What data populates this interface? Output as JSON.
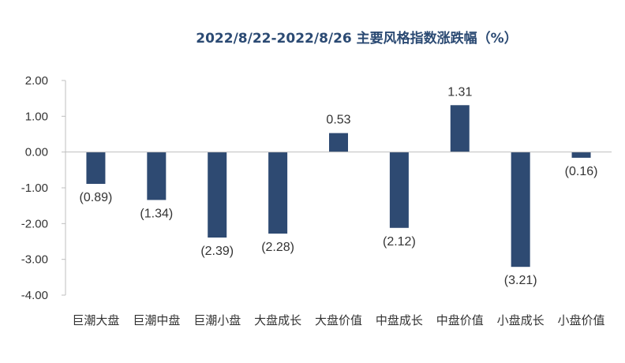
{
  "chart_data": {
    "type": "bar",
    "title": "2022/8/22-2022/8/26  主要风格指数涨跌幅（%）",
    "categories": [
      "巨潮大盘",
      "巨潮中盘",
      "巨潮小盘",
      "大盘成长",
      "大盘价值",
      "中盘成长",
      "中盘价值",
      "小盘成长",
      "小盘价值"
    ],
    "values": [
      -0.89,
      -1.34,
      -2.39,
      -2.28,
      0.53,
      -2.12,
      1.31,
      -3.21,
      -0.16
    ],
    "data_labels": [
      "(0.89)",
      "(1.34)",
      "(2.39)",
      "(2.28)",
      "0.53",
      "(2.12)",
      "1.31",
      "(3.21)",
      "(0.16)"
    ],
    "yticks": [
      "2.00",
      "1.00",
      "0.00",
      "-1.00",
      "-2.00",
      "-3.00",
      "-4.00"
    ],
    "ytick_values": [
      2,
      1,
      0,
      -1,
      -2,
      -3,
      -4
    ],
    "ylim": [
      -4,
      2
    ],
    "xlabel": "",
    "ylabel": "",
    "grid": false,
    "legend": "none",
    "colors": {
      "bar": "#2e4a72",
      "title": "#2b4a73"
    }
  }
}
